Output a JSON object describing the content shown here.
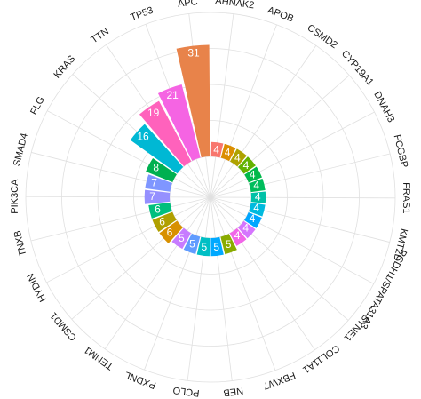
{
  "chart_data": {
    "type": "radial-bar",
    "categories": [
      "APC",
      "AHNAK2",
      "APOB",
      "CSMD2",
      "CYP19A1",
      "DNAH3",
      "FCGBP",
      "FRAS1",
      "KMT2D",
      "PCDH1/SPATA31A3",
      "SYNE1",
      "COL11A1",
      "FBXW7",
      "NEB",
      "PCLO",
      "PXDNL",
      "TENM1",
      "CSMD1",
      "HYDIN",
      "TNXB",
      "PIK3CA",
      "SMAD4",
      "FLG",
      "KRAS",
      "TTN",
      "TP53"
    ],
    "values": [
      31,
      4,
      4,
      4,
      4,
      4,
      4,
      4,
      4,
      4,
      4,
      4,
      5,
      5,
      5,
      5,
      5,
      6,
      6,
      6,
      7,
      7,
      8,
      16,
      19,
      21
    ],
    "colors": [
      "#E8834A",
      "#F8766D",
      "#DB8E00",
      "#AEA200",
      "#64B200",
      "#00B94A",
      "#00BD5C",
      "#00C1A7",
      "#00BADE",
      "#00A6FF",
      "#D575FE",
      "#F166E8",
      "#8AAB00",
      "#00A9FF",
      "#00BFC4",
      "#619CFF",
      "#C77CFF",
      "#D89000",
      "#B0A000",
      "#00BF7D",
      "#9590FF",
      "#7F96FF",
      "#00B050",
      "#00B8D4",
      "#FF62BC",
      "#F564E3"
    ],
    "ylim": [
      0,
      40
    ],
    "yticks": [
      0,
      10,
      20,
      30,
      40
    ],
    "grid": true
  }
}
